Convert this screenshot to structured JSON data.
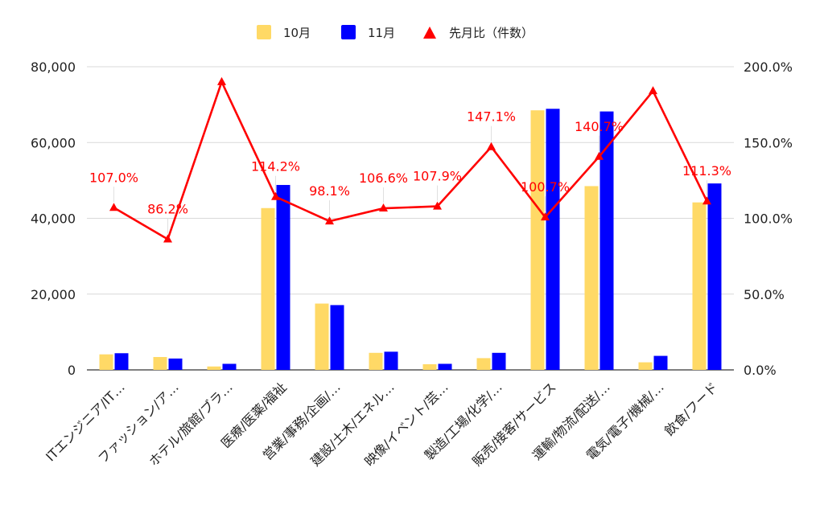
{
  "chart_data": {
    "type": "bar",
    "categories": [
      "ITエンジニア/IT…",
      "ファッション/ア…",
      "ホテル/旅館/ブラ…",
      "医療/医薬/福祉",
      "営業/事務/企画/…",
      "建設/土木/エネル…",
      "映像/イベント/芸…",
      "製造/工場/化学/…",
      "販売/接客/サービス",
      "運輸/物流/配送/…",
      "電気/電子/機械/…",
      "飲食/フード"
    ],
    "series": [
      {
        "name": "10月",
        "values": [
          4100,
          3400,
          900,
          42700,
          17500,
          4500,
          1500,
          3100,
          68500,
          48500,
          2000,
          44200
        ],
        "color": "#ffd966",
        "axis": "left"
      },
      {
        "name": "11月",
        "values": [
          4400,
          3000,
          1600,
          48800,
          17100,
          4800,
          1600,
          4500,
          68900,
          68200,
          3700,
          49200
        ],
        "color": "#0000ff",
        "axis": "left"
      },
      {
        "name": "先月比（件数）",
        "type": "line",
        "values": [
          107.0,
          86.2,
          190.0,
          114.2,
          98.1,
          106.6,
          107.9,
          147.1,
          100.7,
          140.7,
          184.0,
          111.3
        ],
        "color": "#ff0000",
        "axis": "right"
      }
    ],
    "data_labels": [
      "107.0%",
      "86.2%",
      "",
      "114.2%",
      "98.1%",
      "106.6%",
      "107.9%",
      "147.1%",
      "100.7%",
      "140.7%",
      "",
      "111.3%"
    ],
    "y_left": {
      "ticks": [
        "0",
        "20,000",
        "40,000",
        "60,000",
        "80,000"
      ],
      "ylim": [
        0,
        80000
      ]
    },
    "y_right": {
      "ticks": [
        "0.0%",
        "50.0%",
        "100.0%",
        "150.0%",
        "200.0%"
      ],
      "ylim": [
        0,
        200
      ]
    },
    "legend_position": "top-center",
    "grid": true
  }
}
